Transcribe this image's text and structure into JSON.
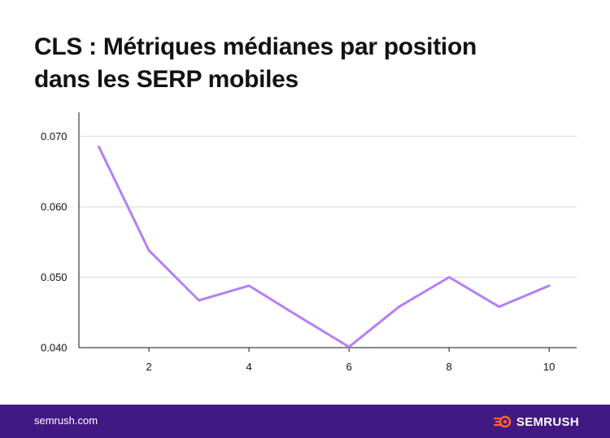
{
  "title_lines": [
    "CLS : Métriques médianes par position",
    "dans les SERP mobiles"
  ],
  "footer": {
    "url": "semrush.com",
    "brand": "SEMRUSH"
  },
  "colors": {
    "line": "#b57ff5",
    "footer_bg": "#421983",
    "brand_icon": "#ff642d",
    "grid": "#d9d9d9",
    "axis": "#121212"
  },
  "chart_data": {
    "type": "line",
    "title": "CLS : Métriques médianes par position dans les SERP mobiles",
    "xlabel": "",
    "ylabel": "",
    "x": [
      1,
      2,
      3,
      4,
      5,
      6,
      7,
      8,
      9,
      10
    ],
    "series": [
      {
        "values": [
          0.0685,
          0.0538,
          0.0467,
          0.0488,
          0.0444,
          0.0401,
          0.0458,
          0.05,
          0.0458,
          0.0488
        ]
      }
    ],
    "xticks": [
      2,
      4,
      6,
      8,
      10
    ],
    "xtick_labels": [
      "2",
      "4",
      "6",
      "8",
      "10"
    ],
    "yticks": [
      0.04,
      0.05,
      0.06,
      0.07
    ],
    "ytick_labels": [
      "0.040",
      "0.050",
      "0.060",
      "0.070"
    ],
    "xlim": [
      0.6,
      10.55
    ],
    "ylim": [
      0.04,
      0.0734
    ],
    "grid": "horizontal"
  }
}
